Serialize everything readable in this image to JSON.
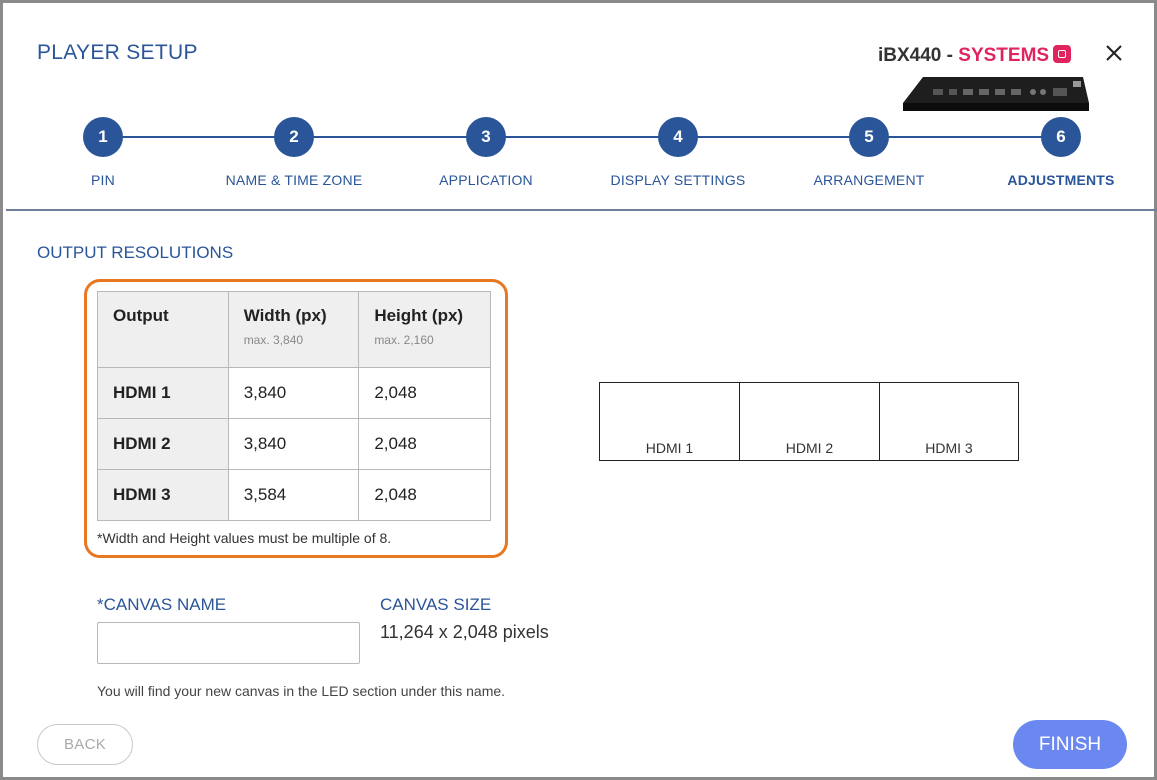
{
  "header": {
    "title": "PLAYER SETUP",
    "device_model": "iBX440 - ",
    "device_brand": "SYSTEMS",
    "brand_color": "#e0245e"
  },
  "steps": [
    {
      "number": "1",
      "label": "PIN"
    },
    {
      "number": "2",
      "label": "NAME & TIME ZONE"
    },
    {
      "number": "3",
      "label": "APPLICATION"
    },
    {
      "number": "4",
      "label": "DISPLAY SETTINGS"
    },
    {
      "number": "5",
      "label": "ARRANGEMENT"
    },
    {
      "number": "6",
      "label": "ADJUSTMENTS",
      "active": true
    }
  ],
  "output_resolutions": {
    "title": "OUTPUT RESOLUTIONS",
    "columns": [
      {
        "label": "Output",
        "sub": ""
      },
      {
        "label": "Width (px)",
        "sub": "max. 3,840"
      },
      {
        "label": "Height (px)",
        "sub": "max. 2,160"
      }
    ],
    "rows": [
      {
        "output": "HDMI 1",
        "width": "3,840",
        "height": "2,048"
      },
      {
        "output": "HDMI 2",
        "width": "3,840",
        "height": "2,048"
      },
      {
        "output": "HDMI 3",
        "width": "3,584",
        "height": "2,048"
      }
    ],
    "note": "*Width and Height values must be multiple of 8."
  },
  "preview": {
    "outputs": [
      "HDMI 1",
      "HDMI 2",
      "HDMI 3"
    ]
  },
  "canvas": {
    "name_label": "*CANVAS NAME",
    "name_value": "",
    "name_placeholder": "",
    "size_label": "CANVAS SIZE",
    "size_value": "11,264 x 2,048 pixels",
    "help": "You will find your new canvas in the LED section under this name."
  },
  "footer": {
    "back_label": "BACK",
    "finish_label": "FINISH"
  },
  "colors": {
    "primary": "#2a5599",
    "highlight": "#e87722",
    "finish": "#6b88f0"
  }
}
